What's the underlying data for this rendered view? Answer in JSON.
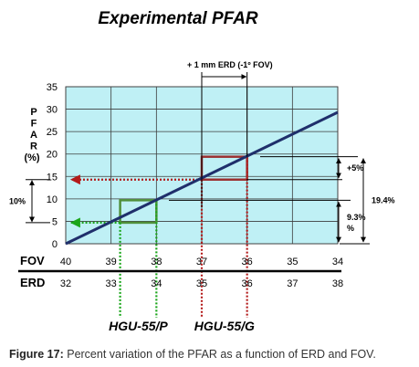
{
  "title": "Experimental PFAR",
  "caption": {
    "label": "Figure 17:",
    "text": "Percent variation of the PFAR as a function of ERD and FOV."
  },
  "chart_data": {
    "type": "line",
    "ylabel": "PFAR (%)",
    "ylim": [
      0,
      35
    ],
    "yticks": [
      0,
      5,
      10,
      15,
      20,
      25,
      30,
      35
    ],
    "fov_label": "FOV",
    "fov_ticks": [
      40,
      39,
      38,
      37,
      36,
      35,
      34
    ],
    "erd_label": "ERD",
    "erd_ticks": [
      32,
      33,
      34,
      35,
      36,
      37,
      38
    ],
    "xlim_erd": [
      32,
      38
    ],
    "grid": true,
    "series": [
      {
        "values_erd": [
          32,
          38
        ],
        "values_pfar": [
          0,
          29.3
        ],
        "color": "#1f2f6b"
      }
    ],
    "markers": [
      {
        "label": "HGU-55/P",
        "erd": [
          33.2,
          34.0
        ],
        "pfar": [
          4.7,
          9.7
        ],
        "color": "#4f8f3a",
        "dot_color": "#1aa51a"
      },
      {
        "label": "HGU-55/G",
        "erd": [
          35.0,
          36.0
        ],
        "pfar": [
          14.3,
          19.4
        ],
        "color": "#9b2f2f",
        "dot_color": "#b31a1a"
      }
    ],
    "annotations": {
      "erd_shift": "+ 1 mm ERD (-1º FOV)",
      "left_span": "10%",
      "plus_five": "+5%",
      "nine_three": "9.3%",
      "nine_three_unit": "%",
      "total": "19.4%"
    }
  },
  "colors": {
    "plot_bg": "#bff0f5",
    "grid": "#3c3c3c",
    "line": "#1f2f6b"
  }
}
